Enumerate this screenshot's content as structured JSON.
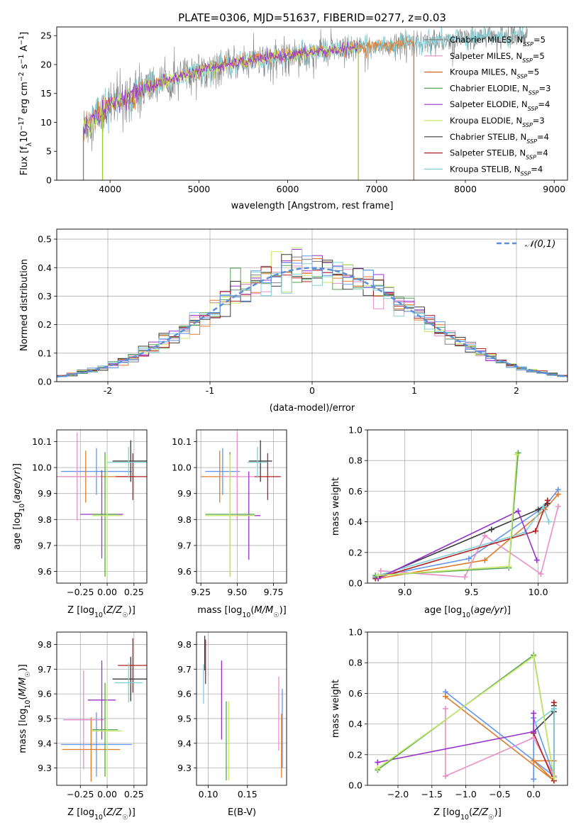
{
  "figure_title": "PLATE=0306, MJD=51637, FIBERID=0277, z=0.03",
  "colors": {
    "Chabrier MILES": "#808080",
    "Salpeter MILES": "#e88fc9",
    "Kroupa MILES": "#d2691e",
    "Chabrier ELODIE": "#55a455",
    "Salpeter ELODIE": "#9932cc",
    "Kroupa ELODIE": "#c8e86a",
    "Chabrier STELIB": "#3a3a3a",
    "Salpeter STELIB": "#b22222",
    "Kroupa STELIB": "#7fd0d8",
    "Cornflower": "#6495ed",
    "Orange": "#e07b2a",
    "Normal": "#5b8fd6"
  },
  "chart_data": [
    {
      "id": "spectrum",
      "type": "line",
      "title": "PLATE=0306, MJD=51637, FIBERID=0277, z=0.03",
      "xlabel": "wavelength [Angstrom, rest frame]",
      "ylabel": "Flux [f_λ10^-17 erg cm^-2 s^-1 A^-1]",
      "xlim": [
        3400,
        9150
      ],
      "ylim": [
        0,
        26.5
      ],
      "xticks": [
        4000,
        5000,
        6000,
        7000,
        8000,
        9000
      ],
      "yticks": [
        0,
        5,
        10,
        15,
        20,
        25
      ],
      "grid": false,
      "legend_position": "right",
      "legend": [
        {
          "label": "Chabrier MILES, N_SSP=5",
          "color": "#808080"
        },
        {
          "label": "Salpeter MILES, N_SSP=5",
          "color": "#e88fc9"
        },
        {
          "label": "Kroupa MILES, N_SSP=5",
          "color": "#d2691e"
        },
        {
          "label": "Chabrier ELODIE, N_SSP=3",
          "color": "#55a455"
        },
        {
          "label": "Salpeter ELODIE, N_SSP=4",
          "color": "#9932cc"
        },
        {
          "label": "Kroupa ELODIE, N_SSP=3",
          "color": "#c8e86a"
        },
        {
          "label": "Chabrier STELIB, N_SSP=4",
          "color": "#3a3a3a"
        },
        {
          "label": "Salpeter STELIB, N_SSP=4",
          "color": "#b22222"
        },
        {
          "label": "Kroupa STELIB, N_SSP=4",
          "color": "#7fd0d8"
        }
      ],
      "continuum": {
        "x": [
          3700,
          3800,
          3900,
          4000,
          4100,
          4200,
          4300,
          4400,
          4500,
          4600,
          4700,
          4800,
          4900,
          5000,
          5200,
          5400,
          5600,
          5800,
          6000,
          6200,
          6400,
          6600,
          6800,
          7000,
          7200,
          7400,
          7600,
          7800,
          8000,
          8200,
          8400,
          8600,
          8800
        ],
        "y": [
          9,
          10.5,
          11.5,
          13,
          13.8,
          14.5,
          15.2,
          15.8,
          16.5,
          17,
          17.5,
          18,
          18.5,
          19,
          19.6,
          20.2,
          20.7,
          21.2,
          21.6,
          22,
          22.3,
          22.6,
          22.9,
          23.2,
          23.5,
          23.8,
          24.1,
          24.3,
          24.5,
          24.7,
          24.9,
          25,
          25.1
        ]
      },
      "spikes": [
        {
          "x": 3700,
          "y0": 0,
          "color": "#808080"
        },
        {
          "x": 3915,
          "y0": 0,
          "color": "#9acd32"
        },
        {
          "x": 6795,
          "y0": 0,
          "color": "#9acd32"
        },
        {
          "x": 7420,
          "y0": 0,
          "color": "#d2691e"
        }
      ]
    },
    {
      "id": "residuals",
      "type": "histogram",
      "xlabel": "(data-model)/error",
      "ylabel": "Normed distribution",
      "xlim": [
        -2.5,
        2.5
      ],
      "ylim": [
        0,
        0.535
      ],
      "xticks": [
        -2,
        -1,
        0,
        1,
        2
      ],
      "yticks": [
        0.0,
        0.1,
        0.2,
        0.3,
        0.4,
        0.5
      ],
      "grid": true,
      "legend_position": "top-right",
      "legend": [
        {
          "label": "𝒩(0,1)",
          "color": "#5b8fd6"
        }
      ],
      "bin_width": 0.1
    },
    {
      "id": "age_vs_Z",
      "type": "errorbar",
      "xlabel": "Z [log10(Z/Z☉)]",
      "ylabel": "age [log10(age/yr)]",
      "xlim": [
        -0.47,
        0.37
      ],
      "ylim": [
        9.555,
        10.145
      ],
      "xticks": [
        -0.25,
        0.0,
        0.25
      ],
      "xticklabels": [
        "−0.25",
        "0.00",
        "0.25"
      ],
      "yticks": [
        9.6,
        9.7,
        9.8,
        9.9,
        10.0,
        10.1
      ],
      "grid": true,
      "points": [
        {
          "x": -0.1,
          "xerr": 0.33,
          "y": 9.985,
          "yerr": 0.09,
          "color": "#6495ed"
        },
        {
          "x": -0.2,
          "xerr": 0.45,
          "y": 9.965,
          "yerr": 0.1,
          "color": "#e07b2a"
        },
        {
          "x": -0.28,
          "xerr": 0.22,
          "y": 9.965,
          "yerr": 0.17,
          "color": "#e88fc9"
        },
        {
          "x": 0.22,
          "xerr": 0.17,
          "y": 10.025,
          "yerr": 0.08,
          "color": "#3a3a3a"
        },
        {
          "x": 0.24,
          "xerr": 0.16,
          "y": 9.965,
          "yerr": 0.09,
          "color": "#b22222"
        },
        {
          "x": 0.2,
          "xerr": 0.2,
          "y": 10.02,
          "yerr": 0.06,
          "color": "#7fd0d8"
        },
        {
          "x": -0.05,
          "xerr": 0.2,
          "y": 9.82,
          "yerr": 0.17,
          "color": "#9932cc"
        },
        {
          "x": -0.02,
          "xerr": 0.12,
          "y": 9.82,
          "yerr": 0.24,
          "color": "#55a455"
        },
        {
          "x": 0.0,
          "xerr": 0.14,
          "y": 9.815,
          "yerr": 0.235,
          "color": "#c8e86a"
        }
      ]
    },
    {
      "id": "age_vs_mass",
      "type": "errorbar",
      "xlabel": "mass [log10(M/M☉)]",
      "ylabel": "",
      "xlim": [
        9.22,
        9.84
      ],
      "ylim": [
        9.555,
        10.145
      ],
      "xticks": [
        9.25,
        9.5,
        9.75
      ],
      "xticklabels": [
        "9.25",
        "9.50",
        "9.75"
      ],
      "yticks": [
        9.6,
        9.7,
        9.8,
        9.9,
        10.0,
        10.1
      ],
      "grid": true,
      "points": [
        {
          "x": 9.4,
          "xerr": 0.12,
          "y": 9.985,
          "yerr": 0.09,
          "color": "#6495ed"
        },
        {
          "x": 9.38,
          "xerr": 0.13,
          "y": 9.965,
          "yerr": 0.1,
          "color": "#e07b2a"
        },
        {
          "x": 9.5,
          "xerr": 0.12,
          "y": 9.965,
          "yerr": 0.17,
          "color": "#e88fc9"
        },
        {
          "x": 9.66,
          "xerr": 0.08,
          "y": 10.025,
          "yerr": 0.08,
          "color": "#3a3a3a"
        },
        {
          "x": 9.71,
          "xerr": 0.09,
          "y": 9.965,
          "yerr": 0.09,
          "color": "#b22222"
        },
        {
          "x": 9.64,
          "xerr": 0.07,
          "y": 10.02,
          "yerr": 0.06,
          "color": "#7fd0d8"
        },
        {
          "x": 9.58,
          "xerr": 0.08,
          "y": 9.815,
          "yerr": 0.17,
          "color": "#9932cc"
        },
        {
          "x": 9.45,
          "xerr": 0.17,
          "y": 9.82,
          "yerr": 0.24,
          "color": "#55a455"
        },
        {
          "x": 9.45,
          "xerr": 0.17,
          "y": 9.815,
          "yerr": 0.235,
          "color": "#c8e86a"
        }
      ]
    },
    {
      "id": "weight_vs_age",
      "type": "line",
      "xlabel": "age [log10(age/yr)]",
      "ylabel": "mass weight",
      "xlim": [
        8.72,
        10.22
      ],
      "ylim": [
        0,
        1
      ],
      "xticks": [
        9.0,
        9.5,
        10.0
      ],
      "xticklabels": [
        "9.0",
        "9.5",
        "10.0"
      ],
      "yticks": [
        0.0,
        0.2,
        0.4,
        0.6,
        0.8,
        1.0
      ],
      "grid": true,
      "series": [
        {
          "color": "#6495ed",
          "x": [
            8.78,
            9.48,
            10.05,
            10.15
          ],
          "y": [
            0.04,
            0.16,
            0.5,
            0.61
          ]
        },
        {
          "color": "#e07b2a",
          "x": [
            8.8,
            9.6,
            10.05,
            10.15
          ],
          "y": [
            0.03,
            0.15,
            0.48,
            0.58
          ]
        },
        {
          "color": "#e88fc9",
          "x": [
            8.82,
            9.45,
            9.6,
            10.02,
            10.15
          ],
          "y": [
            0.08,
            0.04,
            0.31,
            0.06,
            0.5
          ]
        },
        {
          "color": "#3a3a3a",
          "x": [
            8.78,
            9.65,
            10.0,
            10.07
          ],
          "y": [
            0.03,
            0.35,
            0.48,
            0.52
          ]
        },
        {
          "color": "#b22222",
          "x": [
            8.78,
            9.98,
            10.07
          ],
          "y": [
            0.03,
            0.34,
            0.54
          ]
        },
        {
          "color": "#7fd0d8",
          "x": [
            8.8,
            9.9,
            10.04,
            10.08
          ],
          "y": [
            0.05,
            0.33,
            0.5,
            0.4
          ]
        },
        {
          "color": "#9932cc",
          "x": [
            8.8,
            9.85,
            9.99
          ],
          "y": [
            0.03,
            0.47,
            0.15
          ]
        },
        {
          "color": "#55a455",
          "x": [
            8.78,
            9.78,
            9.85
          ],
          "y": [
            0.05,
            0.1,
            0.85
          ]
        },
        {
          "color": "#c8e86a",
          "x": [
            8.8,
            9.78,
            9.84
          ],
          "y": [
            0.05,
            0.11,
            0.84
          ]
        }
      ]
    },
    {
      "id": "mass_vs_Z",
      "type": "errorbar",
      "xlabel": "Z [log10(Z/Z☉)]",
      "ylabel": "mass [log10(M/M☉)]",
      "xlim": [
        -0.47,
        0.37
      ],
      "ylim": [
        9.23,
        9.85
      ],
      "xticks": [
        -0.25,
        0.0,
        0.25
      ],
      "xticklabels": [
        "−0.25",
        "0.00",
        "0.25"
      ],
      "yticks": [
        9.3,
        9.4,
        9.5,
        9.6,
        9.7,
        9.8
      ],
      "grid": true,
      "points": [
        {
          "x": -0.1,
          "xerr": 0.33,
          "y": 9.395,
          "yerr": 0.13,
          "color": "#6495ed"
        },
        {
          "x": -0.15,
          "xerr": 0.27,
          "y": 9.375,
          "yerr": 0.13,
          "color": "#e07b2a"
        },
        {
          "x": -0.22,
          "xerr": 0.19,
          "y": 9.495,
          "yerr": 0.2,
          "color": "#e88fc9"
        },
        {
          "x": 0.22,
          "xerr": 0.17,
          "y": 9.66,
          "yerr": 0.09,
          "color": "#3a3a3a"
        },
        {
          "x": 0.24,
          "xerr": 0.14,
          "y": 9.715,
          "yerr": 0.11,
          "color": "#b22222"
        },
        {
          "x": 0.2,
          "xerr": 0.13,
          "y": 9.645,
          "yerr": 0.08,
          "color": "#7fd0d8"
        },
        {
          "x": -0.05,
          "xerr": 0.13,
          "y": 9.575,
          "yerr": 0.16,
          "color": "#9932cc"
        },
        {
          "x": -0.02,
          "xerr": 0.12,
          "y": 9.455,
          "yerr": 0.19,
          "color": "#55a455"
        },
        {
          "x": 0.0,
          "xerr": 0.14,
          "y": 9.45,
          "yerr": 0.19,
          "color": "#c8e86a"
        }
      ]
    },
    {
      "id": "mass_vs_ebv",
      "type": "errorbar",
      "xlabel": "E(B-V)",
      "ylabel": "",
      "xlim": [
        0.085,
        0.2
      ],
      "ylim": [
        9.23,
        9.85
      ],
      "xticks": [
        0.1,
        0.15
      ],
      "xticklabels": [
        "0.10",
        "0.15"
      ],
      "yticks": [
        9.3,
        9.4,
        9.5,
        9.6,
        9.7,
        9.8
      ],
      "grid": true,
      "points": [
        {
          "x": 0.0955,
          "y": 9.765,
          "yerr": 0.07,
          "color": "#3a3a3a"
        },
        {
          "x": 0.0965,
          "y": 9.73,
          "yerr": 0.09,
          "color": "#b22222"
        },
        {
          "x": 0.094,
          "y": 9.64,
          "yerr": 0.08,
          "color": "#7fd0d8"
        },
        {
          "x": 0.117,
          "y": 9.575,
          "yerr": 0.16,
          "color": "#9932cc"
        },
        {
          "x": 0.123,
          "y": 9.41,
          "yerr": 0.16,
          "color": "#55a455"
        },
        {
          "x": 0.126,
          "y": 9.41,
          "yerr": 0.16,
          "color": "#c8e86a"
        },
        {
          "x": 0.19,
          "y": 9.52,
          "yerr": 0.15,
          "color": "#e88fc9"
        },
        {
          "x": 0.1935,
          "y": 9.39,
          "yerr": 0.13,
          "color": "#e07b2a"
        },
        {
          "x": 0.1945,
          "y": 9.46,
          "yerr": 0.16,
          "color": "#6495ed"
        }
      ]
    },
    {
      "id": "weight_vs_Z",
      "type": "line",
      "xlabel": "Z [log10(Z/Z☉)]",
      "ylabel": "mass weight",
      "xlim": [
        -2.45,
        0.5
      ],
      "ylim": [
        0,
        1
      ],
      "xticks": [
        -2.0,
        -1.5,
        -1.0,
        -0.5,
        0.0
      ],
      "xticklabels": [
        "−2.0",
        "−1.5",
        "−1.0",
        "−0.5",
        "0.0"
      ],
      "yticks": [
        0.0,
        0.2,
        0.4,
        0.6,
        0.8,
        1.0
      ],
      "grid": true,
      "series": [
        {
          "color": "#6495ed",
          "x": [
            -1.3,
            0.3,
            0.0,
            0.0
          ],
          "y": [
            0.61,
            0.06,
            0.44,
            0.04
          ]
        },
        {
          "color": "#e07b2a",
          "x": [
            -1.3,
            0.3,
            0.0,
            0.3
          ],
          "y": [
            0.58,
            0.03,
            0.16,
            0.16
          ]
        },
        {
          "color": "#e88fc9",
          "x": [
            -1.3,
            -1.3,
            0.0,
            0.3,
            0.3
          ],
          "y": [
            0.5,
            0.06,
            0.31,
            0.06,
            0.5
          ]
        },
        {
          "color": "#3a3a3a",
          "x": [
            0.0,
            0.3,
            0.3
          ],
          "y": [
            0.35,
            0.48,
            0.52
          ]
        },
        {
          "color": "#b22222",
          "x": [
            0.0,
            0.3,
            0.3
          ],
          "y": [
            0.34,
            0.03,
            0.54
          ]
        },
        {
          "color": "#7fd0d8",
          "x": [
            0.0,
            0.3,
            0.3,
            0.3
          ],
          "y": [
            0.4,
            0.5,
            0.05,
            0.5
          ]
        },
        {
          "color": "#9932cc",
          "x": [
            -2.3,
            0.0,
            0.0
          ],
          "y": [
            0.15,
            0.35,
            0.47
          ]
        },
        {
          "color": "#55a455",
          "x": [
            -2.3,
            0.0,
            0.3
          ],
          "y": [
            0.1,
            0.85,
            0.05
          ]
        },
        {
          "color": "#c8e86a",
          "x": [
            -2.3,
            0.0,
            0.3
          ],
          "y": [
            0.11,
            0.84,
            0.05
          ]
        }
      ]
    }
  ]
}
